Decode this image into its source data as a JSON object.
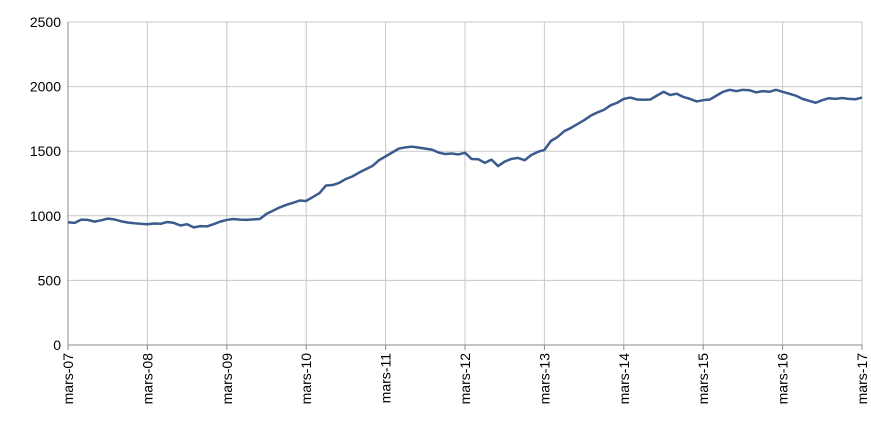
{
  "chart_data": {
    "type": "line",
    "categories": [
      "mars-07",
      null,
      null,
      null,
      null,
      null,
      null,
      null,
      null,
      null,
      null,
      null,
      "mars-08",
      null,
      null,
      null,
      null,
      null,
      null,
      null,
      null,
      null,
      null,
      null,
      "mars-09",
      null,
      null,
      null,
      null,
      null,
      null,
      null,
      null,
      null,
      null,
      null,
      "mars-10",
      null,
      null,
      null,
      null,
      null,
      null,
      null,
      null,
      null,
      null,
      null,
      "mars-11",
      null,
      null,
      null,
      null,
      null,
      null,
      null,
      null,
      null,
      null,
      null,
      "mars-12",
      null,
      null,
      null,
      null,
      null,
      null,
      null,
      null,
      null,
      null,
      null,
      "mars-13",
      null,
      null,
      null,
      null,
      null,
      null,
      null,
      null,
      null,
      null,
      null,
      "mars-14",
      null,
      null,
      null,
      null,
      null,
      null,
      null,
      null,
      null,
      null,
      null,
      "mars-15",
      null,
      null,
      null,
      null,
      null,
      null,
      null,
      null,
      null,
      null,
      null,
      "mars-16",
      null,
      null,
      null,
      null,
      null,
      null,
      null,
      null,
      null,
      null,
      null,
      "mars-17"
    ],
    "values": [
      950,
      945,
      970,
      968,
      955,
      965,
      978,
      972,
      958,
      948,
      942,
      938,
      935,
      940,
      938,
      952,
      945,
      925,
      935,
      910,
      920,
      918,
      935,
      955,
      968,
      975,
      970,
      968,
      972,
      975,
      1015,
      1040,
      1065,
      1085,
      1100,
      1118,
      1115,
      1145,
      1175,
      1235,
      1238,
      1255,
      1285,
      1305,
      1335,
      1360,
      1385,
      1430,
      1460,
      1490,
      1520,
      1530,
      1535,
      1528,
      1520,
      1512,
      1490,
      1478,
      1482,
      1475,
      1488,
      1440,
      1438,
      1410,
      1435,
      1385,
      1420,
      1440,
      1448,
      1430,
      1470,
      1495,
      1510,
      1580,
      1610,
      1655,
      1680,
      1710,
      1740,
      1775,
      1800,
      1820,
      1855,
      1875,
      1905,
      1915,
      1900,
      1898,
      1900,
      1930,
      1960,
      1935,
      1945,
      1920,
      1905,
      1885,
      1895,
      1900,
      1930,
      1960,
      1975,
      1965,
      1975,
      1972,
      1955,
      1965,
      1960,
      1975,
      1960,
      1945,
      1930,
      1905,
      1890,
      1875,
      1895,
      1910,
      1905,
      1912,
      1905,
      1902,
      1915
    ],
    "color": "#3b5b8e",
    "ylim": [
      0,
      2500
    ],
    "yticks": [
      0,
      500,
      1000,
      1500,
      2000,
      2500
    ],
    "grid": true
  }
}
